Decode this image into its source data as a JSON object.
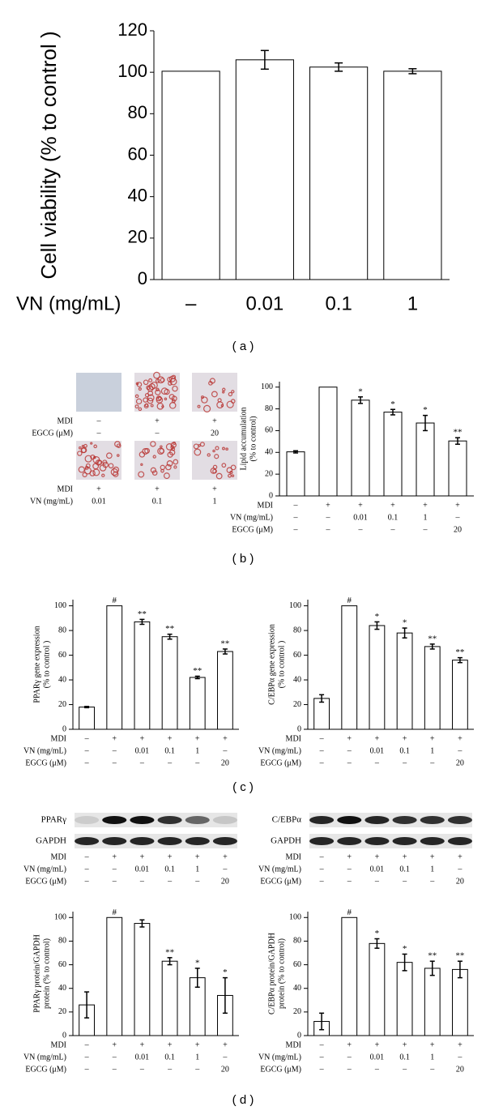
{
  "panel_labels": [
    "( a )",
    "( b )",
    "( c )",
    "( d )"
  ],
  "micrographs": {
    "rows": [
      {
        "conditions": [
          {
            "name": "MDI",
            "values": [
              "–",
              "+",
              "+"
            ]
          },
          {
            "name": "EGCG (μM)",
            "values": [
              "–",
              "–",
              "20"
            ]
          }
        ]
      },
      {
        "conditions": [
          {
            "name": "MDI",
            "values": [
              "+",
              "+",
              "+"
            ]
          },
          {
            "name": "VN (mg/mL)",
            "values": [
              "0.01",
              "0.1",
              "1"
            ]
          }
        ]
      }
    ]
  },
  "blots": [
    {
      "labels": [
        "PPARγ",
        "GAPDH"
      ],
      "conditions": [
        {
          "name": "MDI",
          "values": [
            "–",
            "+",
            "+",
            "+",
            "+",
            "+"
          ]
        },
        {
          "name": "VN (mg/mL)",
          "values": [
            "–",
            "–",
            "0.01",
            "0.1",
            "1",
            "–"
          ]
        },
        {
          "name": "EGCG (μM)",
          "values": [
            "–",
            "–",
            "–",
            "–",
            "–",
            "20"
          ]
        }
      ]
    },
    {
      "labels": [
        "C/EBPα",
        "GAPDH"
      ],
      "conditions": [
        {
          "name": "MDI",
          "values": [
            "–",
            "+",
            "+",
            "+",
            "+",
            "+"
          ]
        },
        {
          "name": "VN (mg/mL)",
          "values": [
            "–",
            "–",
            "0.01",
            "0.1",
            "1",
            "–"
          ]
        },
        {
          "name": "EGCG (μM)",
          "values": [
            "–",
            "–",
            "–",
            "–",
            "–",
            "20"
          ]
        }
      ]
    }
  ],
  "chart_data": [
    {
      "type": "bar",
      "ylabel": [
        "Cell viability (% to control )"
      ],
      "category_label": "VN (mg/mL)",
      "categories": [
        "–",
        "0.01",
        "0.1",
        "1"
      ],
      "values": [
        100.5,
        106,
        102.5,
        100.5
      ],
      "errors": [
        null,
        4.5,
        2,
        1.2
      ],
      "color": "#ffffff",
      "ylim": [
        0,
        120
      ],
      "yticks": [
        0,
        20,
        40,
        60,
        80,
        100,
        120
      ]
    },
    {
      "type": "bar",
      "ylabel": [
        "Lipid accumulation",
        "(% to control)"
      ],
      "values": [
        40.5,
        100,
        88,
        77,
        67,
        50.5
      ],
      "errors": [
        1,
        null,
        3,
        2.5,
        7,
        3
      ],
      "annotations": [
        null,
        null,
        "*",
        "*",
        "*",
        "**"
      ],
      "color": "#ffffff",
      "ylim": [
        0,
        105
      ],
      "yticks": [
        0,
        20,
        40,
        60,
        80,
        100
      ],
      "conditions": [
        {
          "name": "MDI",
          "values": [
            "–",
            "+",
            "+",
            "+",
            "+",
            "+"
          ]
        },
        {
          "name": "VN (mg/mL)",
          "values": [
            "–",
            "–",
            "0.01",
            "0.1",
            "1",
            "–"
          ]
        },
        {
          "name": "EGCG (μM)",
          "values": [
            "–",
            "–",
            "–",
            "–",
            "–",
            "20"
          ]
        }
      ]
    },
    {
      "type": "bar",
      "ylabel": [
        "PPARγ gene expression",
        "(% to control )"
      ],
      "values": [
        18,
        100,
        87,
        75,
        42,
        63
      ],
      "errors": [
        0.5,
        null,
        2,
        2,
        1,
        2
      ],
      "annotations": [
        null,
        "#",
        "**",
        "**",
        "**",
        "**"
      ],
      "color": "#ffffff",
      "ylim": [
        0,
        105
      ],
      "yticks": [
        0,
        20,
        40,
        60,
        80,
        100
      ],
      "conditions": [
        {
          "name": "MDI",
          "values": [
            "–",
            "+",
            "+",
            "+",
            "+",
            "+"
          ]
        },
        {
          "name": "VN (mg/mL)",
          "values": [
            "–",
            "–",
            "0.01",
            "0.1",
            "1",
            "–"
          ]
        },
        {
          "name": "EGCG (μM)",
          "values": [
            "–",
            "–",
            "–",
            "–",
            "–",
            "20"
          ]
        }
      ]
    },
    {
      "type": "bar",
      "ylabel": [
        "C/EBPα gene expression",
        "(% to control )"
      ],
      "values": [
        25,
        100,
        84,
        78,
        67,
        56
      ],
      "errors": [
        3,
        null,
        3,
        4,
        2,
        2
      ],
      "annotations": [
        null,
        "#",
        "*",
        "*",
        "**",
        "**"
      ],
      "color": "#ffffff",
      "ylim": [
        0,
        105
      ],
      "yticks": [
        0,
        20,
        40,
        60,
        80,
        100
      ],
      "conditions": [
        {
          "name": "MDI",
          "values": [
            "–",
            "+",
            "+",
            "+",
            "+",
            "+"
          ]
        },
        {
          "name": "VN (mg/mL)",
          "values": [
            "–",
            "–",
            "0.01",
            "0.1",
            "1",
            "–"
          ]
        },
        {
          "name": "EGCG (μM)",
          "values": [
            "–",
            "–",
            "–",
            "–",
            "–",
            "20"
          ]
        }
      ]
    },
    {
      "type": "bar",
      "ylabel": [
        "PPARγ protein/GAPDH",
        "protein (% to control)"
      ],
      "values": [
        26,
        100,
        95,
        63,
        49,
        34
      ],
      "errors": [
        11,
        null,
        3,
        3,
        8,
        15
      ],
      "annotations": [
        null,
        "#",
        null,
        "**",
        "*",
        "*"
      ],
      "color": "#ffffff",
      "ylim": [
        0,
        105
      ],
      "yticks": [
        0,
        20,
        40,
        60,
        80,
        100
      ],
      "conditions": [
        {
          "name": "MDI",
          "values": [
            "–",
            "+",
            "+",
            "+",
            "+",
            "+"
          ]
        },
        {
          "name": "VN (mg/mL)",
          "values": [
            "–",
            "–",
            "0.01",
            "0.1",
            "1",
            "–"
          ]
        },
        {
          "name": "EGCG (μM)",
          "values": [
            "–",
            "–",
            "–",
            "–",
            "–",
            "20"
          ]
        }
      ]
    },
    {
      "type": "bar",
      "ylabel": [
        "C/EBPα protein/GAPDH",
        "protein (% to control)"
      ],
      "values": [
        12,
        100,
        78,
        62,
        57,
        56
      ],
      "errors": [
        7,
        null,
        4,
        7,
        6,
        7
      ],
      "annotations": [
        null,
        "#",
        "*",
        "*",
        "**",
        "**"
      ],
      "color": "#ffffff",
      "ylim": [
        0,
        105
      ],
      "yticks": [
        0,
        20,
        40,
        60,
        80,
        100
      ],
      "conditions": [
        {
          "name": "MDI",
          "values": [
            "–",
            "+",
            "+",
            "+",
            "+",
            "+"
          ]
        },
        {
          "name": "VN (mg/mL)",
          "values": [
            "–",
            "–",
            "0.01",
            "0.1",
            "1",
            "–"
          ]
        },
        {
          "name": "EGCG (μM)",
          "values": [
            "–",
            "–",
            "–",
            "–",
            "–",
            "20"
          ]
        }
      ]
    }
  ]
}
